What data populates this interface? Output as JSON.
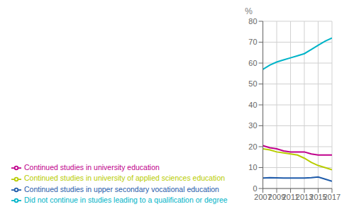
{
  "chart_data": {
    "type": "line",
    "ylabel": "%",
    "x": [
      2007,
      2008,
      2009,
      2010,
      2011,
      2012,
      2013,
      2014,
      2015,
      2016,
      2017
    ],
    "series": [
      {
        "name": "Continued studies in upper secondary vocational education",
        "color": "#1f5baa",
        "values": [
          5.0,
          5.2,
          5.1,
          5.0,
          5.0,
          5.0,
          5.0,
          5.2,
          5.5,
          4.5,
          3.5
        ]
      },
      {
        "name": "Continued studies in university of applied sciences education",
        "color": "#b8cc00",
        "values": [
          19.0,
          18.5,
          17.5,
          17.0,
          16.5,
          16.0,
          14.5,
          12.5,
          11.0,
          10.0,
          9.0
        ]
      },
      {
        "name": "Continued studies in university education",
        "color": "#c0008c",
        "values": [
          20.5,
          19.5,
          19.0,
          18.0,
          17.5,
          17.5,
          17.5,
          16.5,
          16.0,
          16.0,
          16.0
        ]
      },
      {
        "name": "Did not continue in studies leading to a qualification or degree",
        "color": "#00b4c8",
        "values": [
          57.0,
          59.0,
          60.5,
          61.5,
          62.5,
          63.5,
          64.5,
          66.5,
          68.5,
          70.5,
          72.0
        ]
      }
    ],
    "xlim": [
      2007,
      2017
    ],
    "xticks": [
      2007,
      2009,
      2011,
      2013,
      2015,
      2017
    ],
    "ylim": [
      0,
      80
    ],
    "yticks": [
      0,
      10,
      20,
      30,
      40,
      50,
      60,
      70,
      80
    ],
    "grid": true,
    "legend": "lower left"
  }
}
